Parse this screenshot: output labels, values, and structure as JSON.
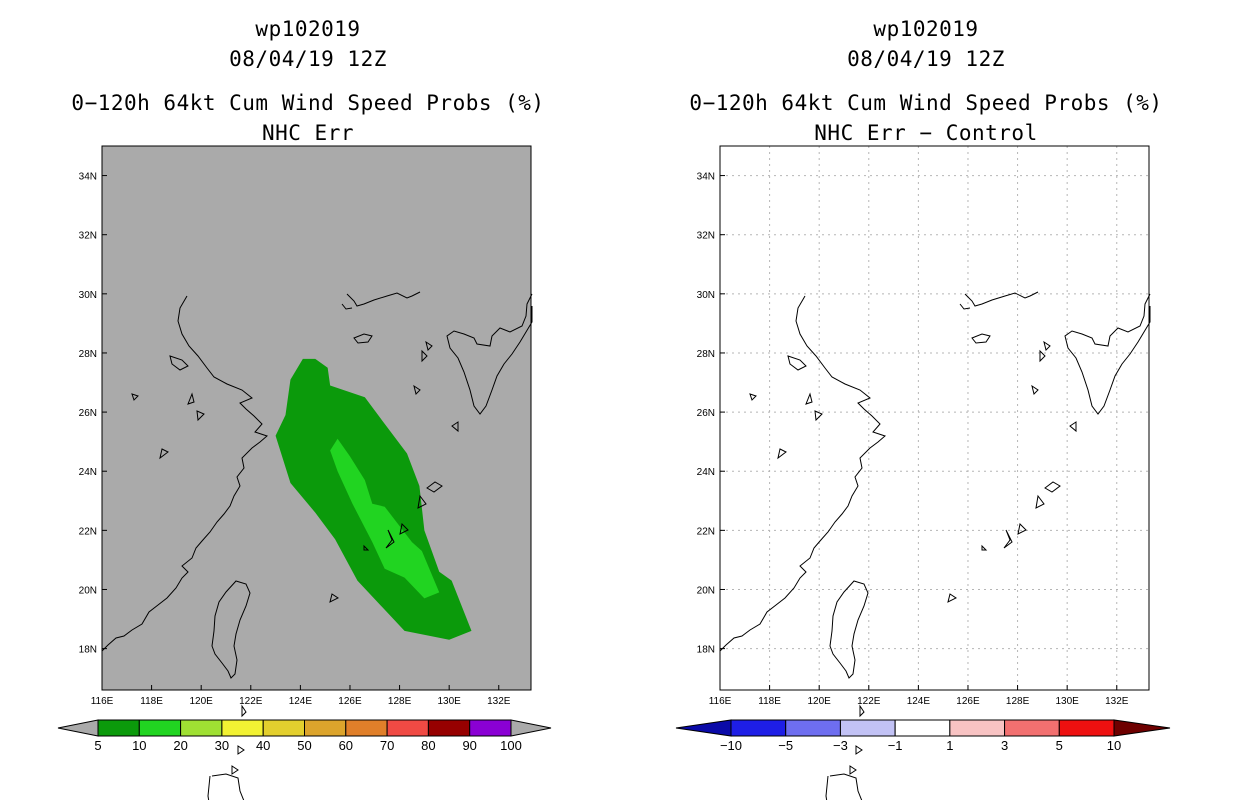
{
  "left": {
    "storm": "wp102019",
    "date": "08/04/19 12Z",
    "title": "0−120h 64kt Cum Wind Speed Probs (%)",
    "subtitle": "NHC Err",
    "colorbar": {
      "labels": [
        "5",
        "10",
        "20",
        "30",
        "40",
        "50",
        "60",
        "70",
        "80",
        "90",
        "100"
      ],
      "colors": [
        "#0b9a0b",
        "#21d421",
        "#9fe033",
        "#f2f233",
        "#e3cf2e",
        "#dca42c",
        "#e07f2a",
        "#f04a44",
        "#960000",
        "#8a00d4"
      ]
    }
  },
  "right": {
    "storm": "wp102019",
    "date": "08/04/19 12Z",
    "title": "0−120h 64kt Cum Wind Speed Probs (%)",
    "subtitle": "NHC Err − Control",
    "colorbar": {
      "labels": [
        "−10",
        "−5",
        "−3",
        "−1",
        "1",
        "3",
        "5",
        "10"
      ],
      "colors": [
        "#1e1ee6",
        "#6e6ef0",
        "#c2c2f5",
        "#ffffff",
        "#f8c3c3",
        "#f27070",
        "#ee1010"
      ],
      "low_color": "#0a0aa8",
      "high_color": "#6e0000"
    }
  },
  "chart_data": [
    {
      "type": "heatmap",
      "title": "0−120h 64kt Cum Wind Speed Probs (%)",
      "subtitle": "NHC Err",
      "storm": "wp102019",
      "date": "08/04/19 12Z",
      "xlabel": "",
      "ylabel": "",
      "xlim": [
        116,
        133.3
      ],
      "ylim": [
        16.6,
        35
      ],
      "xticks": [
        "116E",
        "118E",
        "120E",
        "122E",
        "124E",
        "126E",
        "128E",
        "130E",
        "132E"
      ],
      "yticks": [
        "18N",
        "20N",
        "22N",
        "24N",
        "26N",
        "28N",
        "30N",
        "32N",
        "34N"
      ],
      "grid": false,
      "background": "#aaaaaa",
      "regions": [
        {
          "level": "5-10",
          "color": "#0b9a0b",
          "lon_lat": [
            [
              124.6,
              27.8
            ],
            [
              125.1,
              27.5
            ],
            [
              125.2,
              26.9
            ],
            [
              126.6,
              26.5
            ],
            [
              127.4,
              25.6
            ],
            [
              128.3,
              24.6
            ],
            [
              128.8,
              23.5
            ],
            [
              129.0,
              22.0
            ],
            [
              129.6,
              20.6
            ],
            [
              130.1,
              20.3
            ],
            [
              130.9,
              18.6
            ],
            [
              130.0,
              18.3
            ],
            [
              128.2,
              18.6
            ],
            [
              126.3,
              20.3
            ],
            [
              125.4,
              21.7
            ],
            [
              124.6,
              22.6
            ],
            [
              123.6,
              23.6
            ],
            [
              123.0,
              25.2
            ],
            [
              123.4,
              25.9
            ],
            [
              123.6,
              27.1
            ],
            [
              124.1,
              27.8
            ]
          ]
        },
        {
          "level": "10-20",
          "color": "#21d421",
          "lon_lat": [
            [
              125.5,
              25.1
            ],
            [
              126.0,
              24.5
            ],
            [
              126.6,
              23.7
            ],
            [
              126.9,
              22.9
            ],
            [
              127.4,
              22.8
            ],
            [
              128.5,
              21.6
            ],
            [
              128.9,
              21.3
            ],
            [
              129.6,
              19.9
            ],
            [
              129.0,
              19.7
            ],
            [
              128.2,
              20.4
            ],
            [
              127.4,
              20.7
            ],
            [
              126.9,
              21.6
            ],
            [
              126.1,
              22.9
            ],
            [
              125.5,
              24.0
            ],
            [
              125.2,
              24.7
            ]
          ]
        }
      ]
    },
    {
      "type": "heatmap",
      "title": "0−120h 64kt Cum Wind Speed Probs (%)",
      "subtitle": "NHC Err − Control",
      "storm": "wp102019",
      "date": "08/04/19 12Z",
      "xlabel": "",
      "ylabel": "",
      "xlim": [
        116,
        133.3
      ],
      "ylim": [
        16.6,
        35
      ],
      "xticks": [
        "116E",
        "118E",
        "120E",
        "122E",
        "124E",
        "126E",
        "128E",
        "130E",
        "132E"
      ],
      "yticks": [
        "18N",
        "20N",
        "22N",
        "24N",
        "26N",
        "28N",
        "30N",
        "32N",
        "34N"
      ],
      "grid": true,
      "background": "#ffffff",
      "regions": []
    }
  ]
}
